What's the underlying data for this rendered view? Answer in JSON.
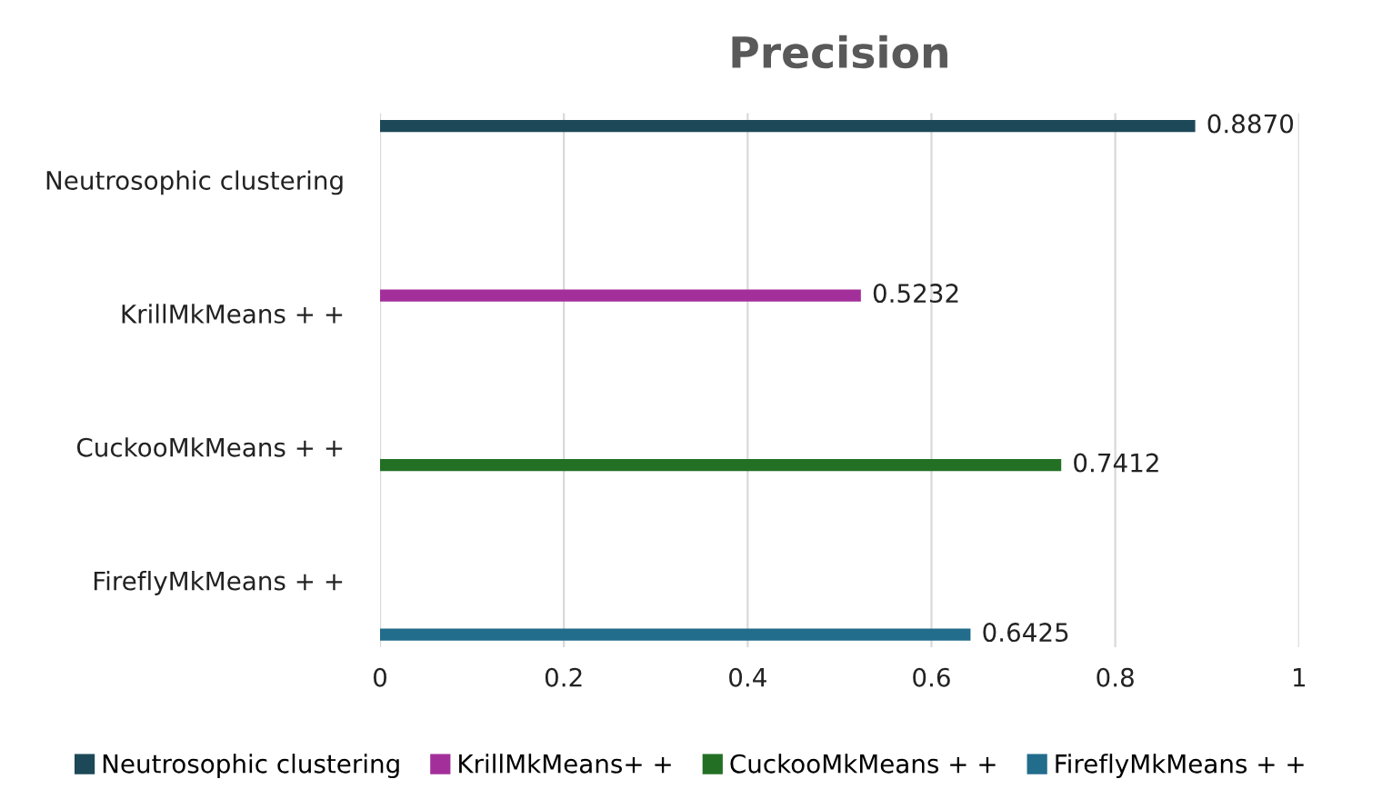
{
  "chart_data": {
    "type": "bar",
    "orientation": "horizontal",
    "title": "Precision",
    "categories": [
      "Neutrosophic clustering",
      "KrillMkMeans + +",
      "CuckooMkMeans + +",
      "FireflyMkMeans + +"
    ],
    "series": [
      {
        "name": "Neutrosophic clustering",
        "color": "#1d4858",
        "values": [
          0.887,
          null,
          null,
          null
        ],
        "value_labels": [
          "0.8870",
          null,
          null,
          null
        ]
      },
      {
        "name": "KrillMkMeans+ +",
        "color": "#a3309a",
        "values": [
          null,
          0.5232,
          null,
          null
        ],
        "value_labels": [
          null,
          "0.5232",
          null,
          null
        ]
      },
      {
        "name": "CuckooMkMeans + +",
        "color": "#237025",
        "values": [
          null,
          null,
          0.7412,
          null
        ],
        "value_labels": [
          null,
          null,
          "0.7412",
          null
        ]
      },
      {
        "name": "FireflyMkMeans + +",
        "color": "#226c8c",
        "values": [
          null,
          null,
          null,
          0.6425
        ],
        "value_labels": [
          null,
          null,
          null,
          "0.6425"
        ]
      }
    ],
    "xlim": [
      0,
      1
    ],
    "xticks": [
      0,
      0.2,
      0.4,
      0.6,
      0.8,
      1
    ],
    "grid": "x",
    "legend": "bottom"
  }
}
